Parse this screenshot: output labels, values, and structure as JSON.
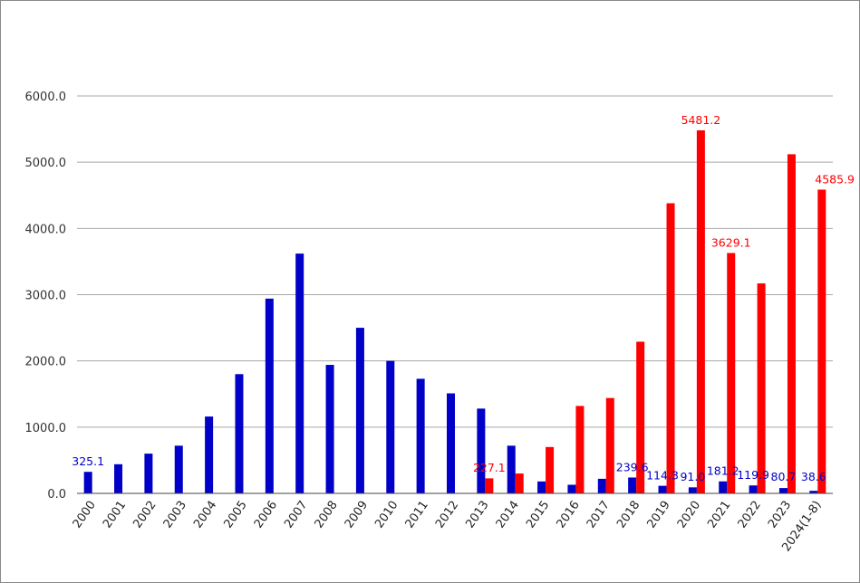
{
  "chart_data": {
    "type": "bar",
    "categories": [
      "2000",
      "2001",
      "2002",
      "2003",
      "2004",
      "2005",
      "2006",
      "2007",
      "2008",
      "2009",
      "2010",
      "2011",
      "2012",
      "2013",
      "2014",
      "2015",
      "2016",
      "2017",
      "2018",
      "2019",
      "2020",
      "2021",
      "2022",
      "2023",
      "2024(1-8)"
    ],
    "ylim": [
      0,
      6000
    ],
    "yticks": [
      "0.0",
      "1000.0",
      "2000.0",
      "3000.0",
      "4000.0",
      "5000.0",
      "6000.0"
    ],
    "grid": true,
    "series": [
      {
        "color": "#0000c8",
        "values": [
          325.1,
          440,
          600,
          720,
          1160,
          1800,
          2940,
          3620,
          1940,
          2500,
          2000,
          1730,
          1510,
          1280,
          720,
          180,
          130,
          220,
          239.6,
          114.3,
          91.0,
          181.2,
          119.9,
          80.7,
          38.6
        ],
        "labels": [
          "325.1",
          "",
          "",
          "",
          "",
          "",
          "",
          "",
          "",
          "",
          "",
          "",
          "",
          "",
          "",
          "",
          "",
          "",
          "239.6",
          "114.3",
          "91.0",
          "181.2",
          "119.9",
          "80.7",
          "38.6"
        ]
      },
      {
        "color": "#ff0000",
        "values": [
          null,
          null,
          null,
          null,
          null,
          null,
          null,
          null,
          null,
          null,
          null,
          null,
          null,
          227.1,
          300,
          700,
          1320,
          1440,
          2290,
          4380,
          5481.2,
          3629.1,
          3170,
          5120,
          4585.9
        ],
        "labels": [
          "",
          "",
          "",
          "",
          "",
          "",
          "",
          "",
          "",
          "",
          "",
          "",
          "",
          "227.1",
          "",
          "",
          "",
          "",
          "",
          "",
          "5481.2",
          "3629.1",
          "",
          "",
          "4585.9"
        ]
      }
    ]
  }
}
